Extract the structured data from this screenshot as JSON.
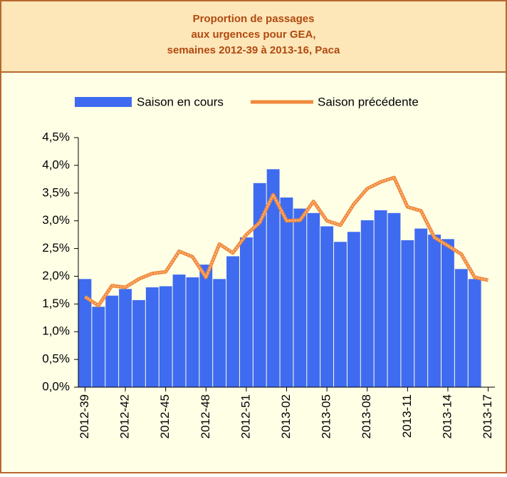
{
  "chart_data": {
    "type": "bar",
    "title": [
      "Proportion de passages",
      "aux urgences pour GEA,",
      "semaines 2012-39 à 2013-16, Paca"
    ],
    "categories": [
      "2012-39",
      null,
      null,
      "2012-42",
      null,
      null,
      "2012-45",
      null,
      null,
      "2012-48",
      null,
      null,
      "2012-51",
      null,
      null,
      "2013-02",
      null,
      null,
      "2013-05",
      null,
      null,
      "2013-08",
      null,
      null,
      "2013-11",
      null,
      null,
      "2013-14",
      null,
      null,
      "2013-17"
    ],
    "series": [
      {
        "name": "Saison en cours",
        "type": "bar",
        "color": "#3f6bf0",
        "values": [
          1.95,
          1.45,
          1.65,
          1.77,
          1.57,
          1.8,
          1.82,
          2.03,
          1.98,
          2.21,
          1.95,
          2.36,
          2.7,
          3.68,
          3.93,
          3.42,
          3.22,
          3.14,
          2.9,
          2.62,
          2.8,
          3.01,
          3.19,
          3.14,
          2.65,
          2.86,
          2.75,
          2.67,
          2.13,
          1.95,
          null
        ]
      },
      {
        "name": "Saison précédente",
        "type": "line",
        "color": "#f08a3c",
        "values": [
          1.63,
          1.47,
          1.83,
          1.8,
          1.95,
          2.05,
          2.08,
          2.45,
          2.35,
          1.98,
          2.58,
          2.42,
          2.75,
          2.97,
          3.47,
          3.0,
          3.01,
          3.35,
          3.0,
          2.92,
          3.3,
          3.58,
          3.7,
          3.78,
          3.25,
          3.18,
          2.7,
          2.55,
          2.4,
          1.98,
          1.93
        ]
      }
    ],
    "ylim": [
      0,
      4.5
    ],
    "yticks": [
      {
        "value": 0,
        "label": "0,0%"
      },
      {
        "value": 0.5,
        "label": "0,5%"
      },
      {
        "value": 1,
        "label": "1,0%"
      },
      {
        "value": 1.5,
        "label": "1,5%"
      },
      {
        "value": 2,
        "label": "2,0%"
      },
      {
        "value": 2.5,
        "label": "2,5%"
      },
      {
        "value": 3,
        "label": "3,0%"
      },
      {
        "value": 3.5,
        "label": "3,5%"
      },
      {
        "value": 4,
        "label": "4,0%"
      },
      {
        "value": 4.5,
        "label": "4,5%"
      }
    ],
    "legend": "top"
  }
}
